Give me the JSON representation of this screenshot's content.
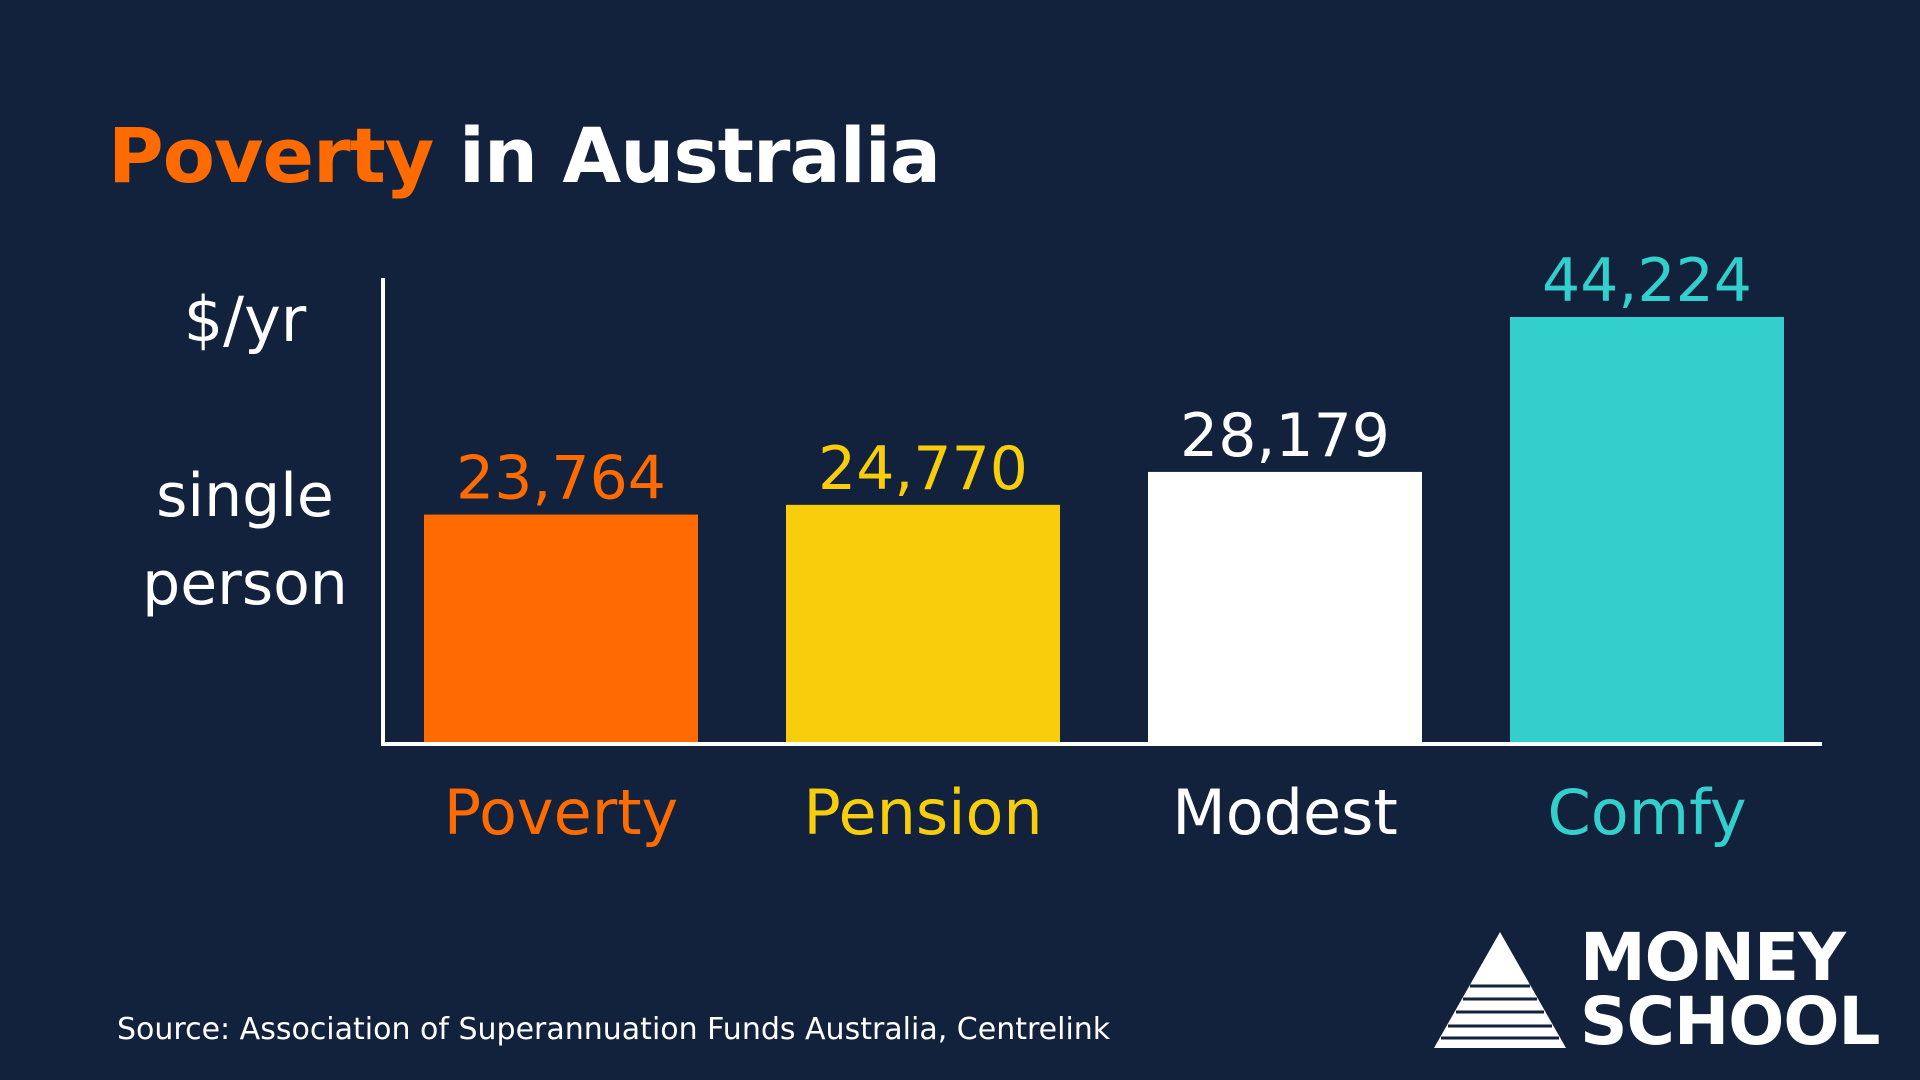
{
  "title": {
    "highlight": "Poverty",
    "rest": " in Australia"
  },
  "y_axis": {
    "unit": "$/yr",
    "subject_line1": "single",
    "subject_line2": "person"
  },
  "colors": {
    "background": "#12223c",
    "poverty": "#ff6b00",
    "pension": "#f7cd0c",
    "modest": "#ffffff",
    "comfy": "#32cfcc",
    "axis": "#ffffff"
  },
  "chart_data": {
    "type": "bar",
    "title": "Poverty in Australia",
    "ylabel": "$/yr single person",
    "xlabel": "",
    "categories": [
      "Poverty",
      "Pension",
      "Modest",
      "Comfy"
    ],
    "values": [
      23764,
      24770,
      28179,
      44224
    ],
    "value_labels": [
      "23,764",
      "24,770",
      "28,179",
      "44,224"
    ],
    "bar_colors": [
      "#ff6b00",
      "#f7cd0c",
      "#ffffff",
      "#32cfcc"
    ],
    "ylim": [
      0,
      45000
    ],
    "grid": false,
    "legend": "none"
  },
  "source": "Source: Association of Superannuation Funds Australia, Centrelink",
  "logo": {
    "line1": "MONEY",
    "line2": "SCHOOL",
    "icon": "pyramid-icon"
  }
}
